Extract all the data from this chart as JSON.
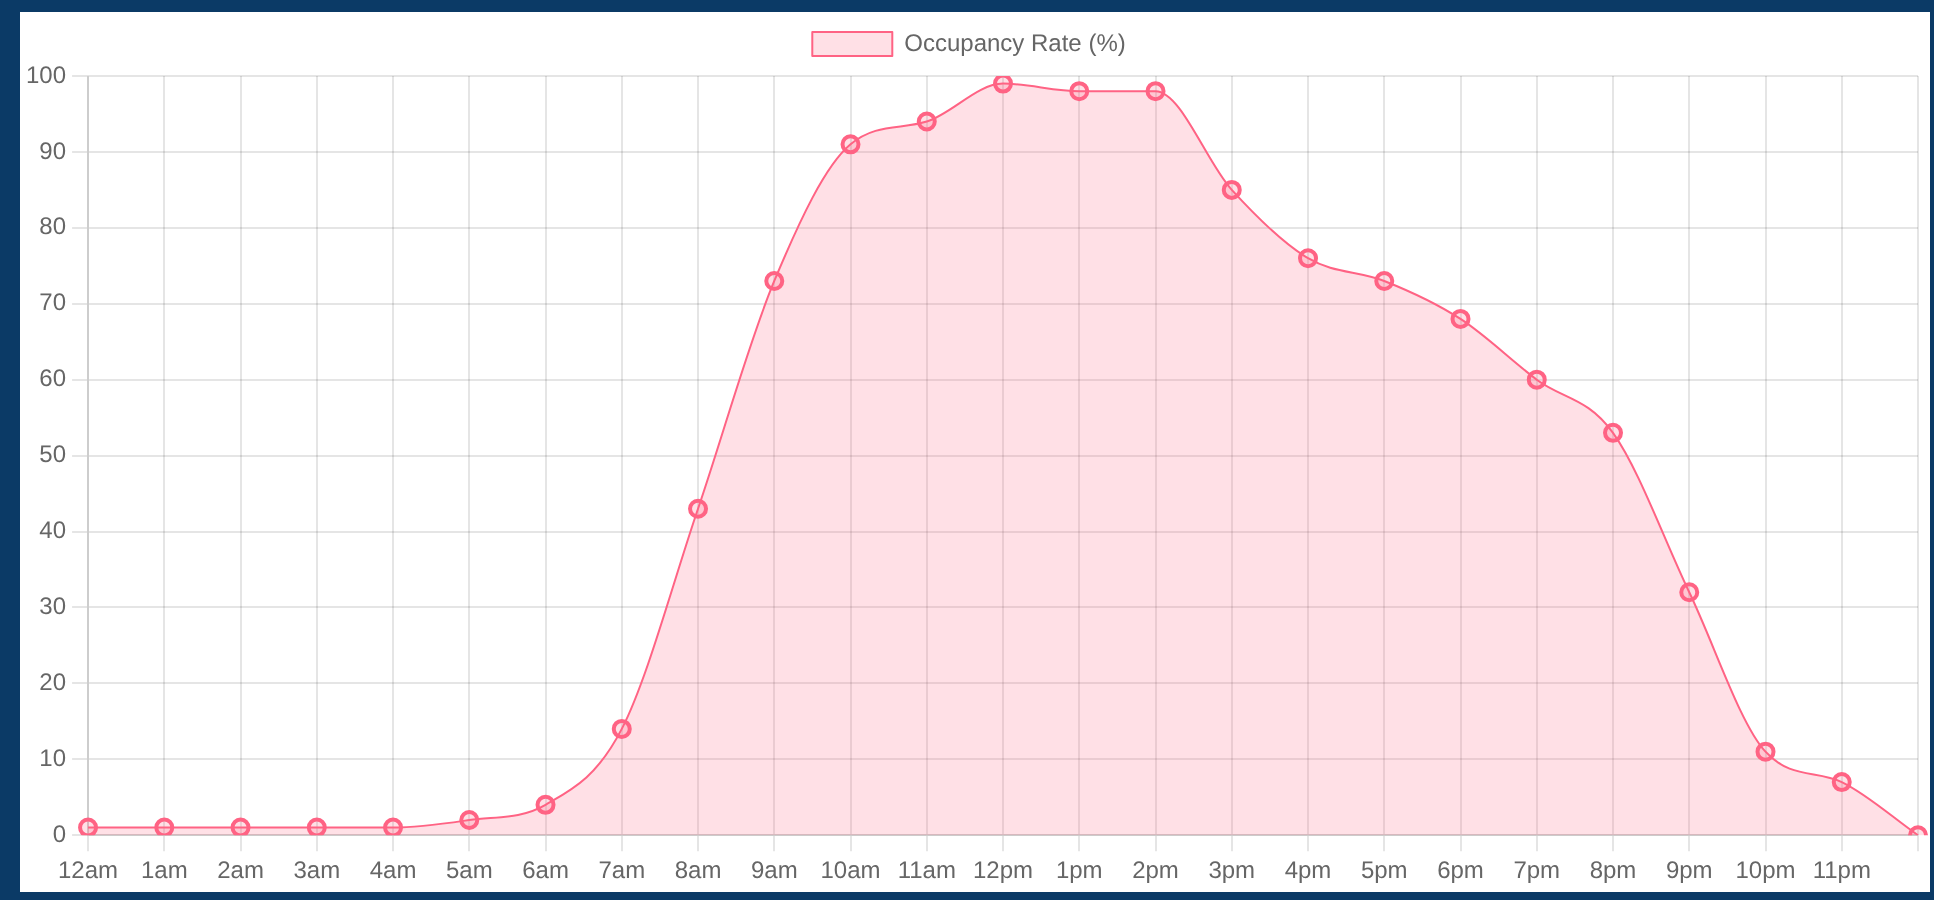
{
  "chart_data": {
    "type": "area",
    "categories": [
      "12am",
      "1am",
      "2am",
      "3am",
      "4am",
      "5am",
      "6am",
      "7am",
      "8am",
      "9am",
      "10am",
      "11am",
      "12pm",
      "1pm",
      "2pm",
      "3pm",
      "4pm",
      "5pm",
      "6pm",
      "7pm",
      "8pm",
      "9pm",
      "10pm",
      "11pm",
      null
    ],
    "series": [
      {
        "name": "Occupancy Rate (%)",
        "color": "#ff6384",
        "values": [
          1,
          1,
          1,
          1,
          1,
          2,
          4,
          14,
          43,
          73,
          91,
          94,
          99,
          98,
          98,
          85,
          76,
          73,
          68,
          60,
          53,
          32,
          11,
          7,
          0
        ]
      }
    ],
    "ylim": [
      0,
      100
    ],
    "yticks": [
      0,
      10,
      20,
      30,
      40,
      50,
      60,
      70,
      80,
      90,
      100
    ],
    "grid": true,
    "legend": "top",
    "marker": "circle"
  }
}
